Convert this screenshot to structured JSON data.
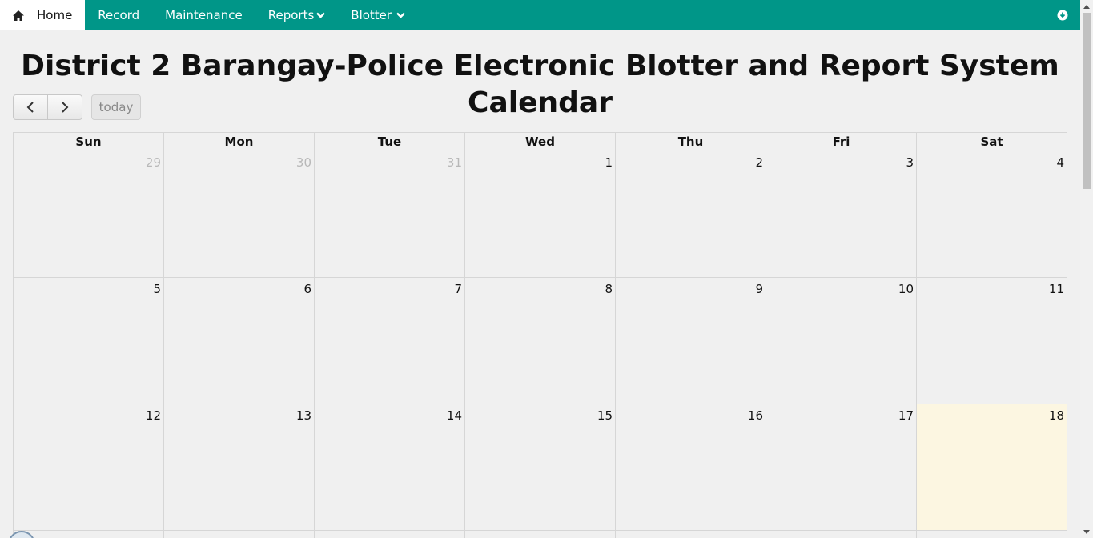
{
  "nav": {
    "home_label": "Home",
    "record_label": "Record",
    "maintenance_label": "Maintenance",
    "reports_label": "Reports",
    "blotter_label": "Blotter",
    "home_icon": "home-icon",
    "right_icon": "download-circle-icon",
    "brand_color": "#009688"
  },
  "page": {
    "title": "District 2 Barangay-Police Electronic Blotter and Report System Calendar"
  },
  "toolbar": {
    "prev_icon": "chevron-left-icon",
    "next_icon": "chevron-right-icon",
    "today_label": "today"
  },
  "calendar": {
    "weekdays": [
      "Sun",
      "Mon",
      "Tue",
      "Wed",
      "Thu",
      "Fri",
      "Sat"
    ],
    "weeks": [
      [
        {
          "day": "29",
          "other": true
        },
        {
          "day": "30",
          "other": true
        },
        {
          "day": "31",
          "other": true
        },
        {
          "day": "1"
        },
        {
          "day": "2"
        },
        {
          "day": "3"
        },
        {
          "day": "4"
        }
      ],
      [
        {
          "day": "5"
        },
        {
          "day": "6"
        },
        {
          "day": "7"
        },
        {
          "day": "8"
        },
        {
          "day": "9"
        },
        {
          "day": "10"
        },
        {
          "day": "11"
        }
      ],
      [
        {
          "day": "12"
        },
        {
          "day": "13"
        },
        {
          "day": "14"
        },
        {
          "day": "15"
        },
        {
          "day": "16"
        },
        {
          "day": "17"
        },
        {
          "day": "18",
          "today": true
        }
      ]
    ],
    "today_color": "#fcf6e1"
  }
}
